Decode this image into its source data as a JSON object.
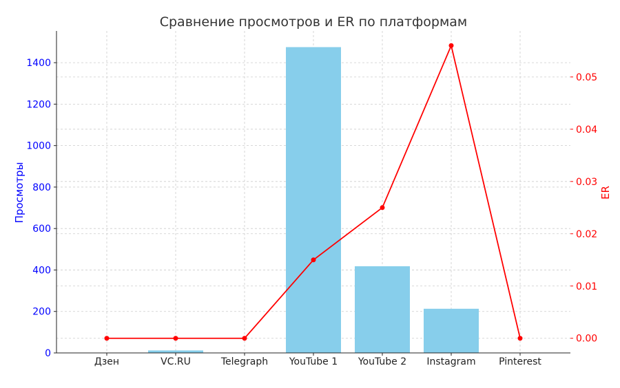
{
  "chart_data": {
    "type": "bar+line",
    "title": "Сравнение просмотров и ER по платформам",
    "categories": [
      "Дзен",
      "VC.RU",
      "Telegraph",
      "YouTube 1",
      "YouTube 2",
      "Instagram",
      "Pinterest"
    ],
    "series": [
      {
        "axis": "left",
        "type": "bar",
        "values": [
          0,
          12,
          0,
          1475,
          418,
          213,
          0
        ],
        "color": "#87CEEB"
      },
      {
        "axis": "right",
        "type": "line",
        "values": [
          0,
          0,
          0,
          0.015,
          0.025,
          0.056,
          0
        ],
        "color": "#FF0000"
      }
    ],
    "ylabel": "Просмотры",
    "ylabel_color": "#0000FF",
    "y2label": "ER",
    "y2label_color": "#FF0000",
    "ylim": [
      0,
      1553
    ],
    "yticks": [
      0,
      200,
      400,
      600,
      800,
      1000,
      1200,
      1400
    ],
    "y2lim": [
      -0.0028,
      0.0588
    ],
    "y2ticks": [
      "0.00",
      "0.01",
      "0.02",
      "0.03",
      "0.04",
      "0.05"
    ],
    "grid": true
  }
}
